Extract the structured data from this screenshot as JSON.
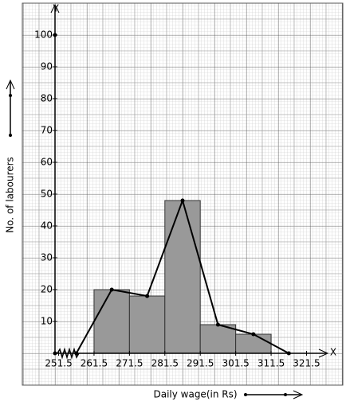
{
  "chart_data": {
    "type": "histogram",
    "x_label": "Daily wage(in Rs)",
    "y_label": "No. of labourers",
    "x_axis_letter": "X",
    "y_axis_letter": "Y",
    "bins": [
      261.5,
      271.5,
      281.5,
      291.5,
      301.5,
      311.5
    ],
    "values": [
      20,
      18,
      48,
      9,
      6
    ],
    "color": "#999999",
    "polygon": {
      "x": [
        256.5,
        266.5,
        276.5,
        286.5,
        296.5,
        306.5,
        316.5
      ],
      "values": [
        0,
        20,
        18,
        48,
        9,
        6,
        0
      ],
      "color": "#000000"
    },
    "xlim": [
      241.25,
      331.75
    ],
    "xticks": [
      251.5,
      261.5,
      271.5,
      281.5,
      291.5,
      301.5,
      311.5,
      321.5
    ],
    "ylim": [
      -10,
      110
    ],
    "yticks": [
      10,
      20,
      30,
      40,
      50,
      60,
      70,
      80,
      90,
      100
    ]
  }
}
